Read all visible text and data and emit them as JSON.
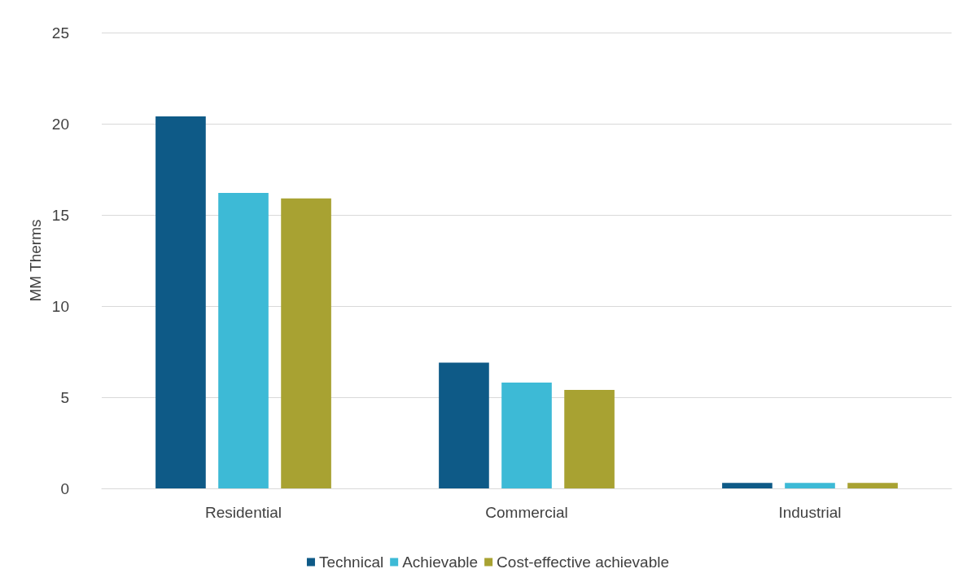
{
  "chart_data": {
    "type": "bar",
    "ylabel": "MM Therms",
    "categories": [
      "Residential",
      "Commercial",
      "Industrial"
    ],
    "series": [
      {
        "name": "Technical",
        "color": "#0e5a87",
        "values": [
          20.4,
          6.9,
          0.3
        ]
      },
      {
        "name": "Achievable",
        "color": "#3dbad6",
        "values": [
          16.2,
          5.8,
          0.3
        ]
      },
      {
        "name": "Cost-effective achievable",
        "color": "#a8a232",
        "values": [
          15.9,
          5.4,
          0.3
        ]
      }
    ],
    "ylim": [
      0,
      25
    ],
    "yticks": [
      0,
      5,
      10,
      15,
      20,
      25
    ],
    "grid": "y",
    "legend": "bottom"
  }
}
